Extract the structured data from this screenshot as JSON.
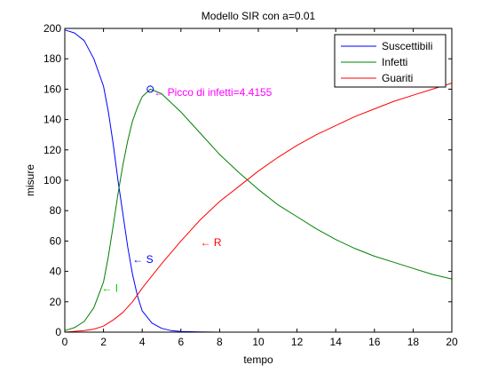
{
  "chart_data": {
    "type": "line",
    "title": "Modello SIR con a=0.01",
    "xlabel": "tempo",
    "ylabel": "misure",
    "xlim": [
      0,
      20
    ],
    "ylim": [
      0,
      200
    ],
    "xticks": [
      0,
      2,
      4,
      6,
      8,
      10,
      12,
      14,
      16,
      18,
      20
    ],
    "yticks": [
      0,
      20,
      40,
      60,
      80,
      100,
      120,
      140,
      160,
      180,
      200
    ],
    "grid": false,
    "legend_position": "top-right",
    "series": [
      {
        "name": "Suscettibili",
        "color": "#0000ff",
        "x": [
          0,
          0.5,
          1,
          1.5,
          2,
          2.25,
          2.5,
          2.75,
          3,
          3.25,
          3.5,
          3.75,
          4,
          4.5,
          5,
          5.5,
          6,
          7,
          8,
          10,
          12,
          14,
          16,
          18,
          20
        ],
        "y": [
          199,
          197,
          192,
          180,
          162,
          145,
          124,
          100,
          78,
          56,
          38,
          24,
          14,
          6,
          2.5,
          1,
          0.4,
          0.1,
          0,
          0,
          0,
          0,
          0,
          0,
          0
        ]
      },
      {
        "name": "Infetti",
        "color": "#008000",
        "x": [
          0,
          0.5,
          1,
          1.5,
          2,
          2.25,
          2.5,
          2.75,
          3,
          3.25,
          3.5,
          3.75,
          4,
          4.4155,
          5,
          6,
          7,
          8,
          9,
          10,
          11,
          12,
          13,
          14,
          15,
          16,
          17,
          18,
          19,
          20
        ],
        "y": [
          1,
          3,
          7,
          16,
          33,
          50,
          70,
          91,
          110,
          126,
          139,
          148,
          155,
          160,
          157,
          145,
          131,
          117,
          105,
          94,
          84,
          76,
          68,
          61,
          55,
          50,
          46,
          42,
          38,
          35
        ]
      },
      {
        "name": "Guariti",
        "color": "#ff0000",
        "x": [
          0,
          1,
          1.5,
          2,
          2.5,
          3,
          3.5,
          4,
          4.5,
          5,
          6,
          7,
          8,
          9,
          10,
          11,
          12,
          13,
          14,
          15,
          16,
          17,
          18,
          19,
          20
        ],
        "y": [
          0,
          1,
          2,
          4,
          8,
          13,
          20,
          29,
          37,
          45,
          60,
          74,
          86,
          96,
          106,
          115,
          123,
          130,
          136,
          142,
          147,
          152,
          156,
          160,
          164
        ]
      }
    ],
    "peak_marker": {
      "x": 4.4155,
      "y": 160,
      "color": "#0000ff"
    },
    "annotations": [
      {
        "text": "← Picco di infetti=4.4155",
        "x": 4.6,
        "y": 158,
        "color": "#ff00ff"
      },
      {
        "text": "← S",
        "x": 3.5,
        "y": 48,
        "color": "#0000ff"
      },
      {
        "text": "← I",
        "x": 1.9,
        "y": 29,
        "color": "#00cc00"
      },
      {
        "text": "← R",
        "x": 7.0,
        "y": 59,
        "color": "#ff0000"
      }
    ]
  }
}
